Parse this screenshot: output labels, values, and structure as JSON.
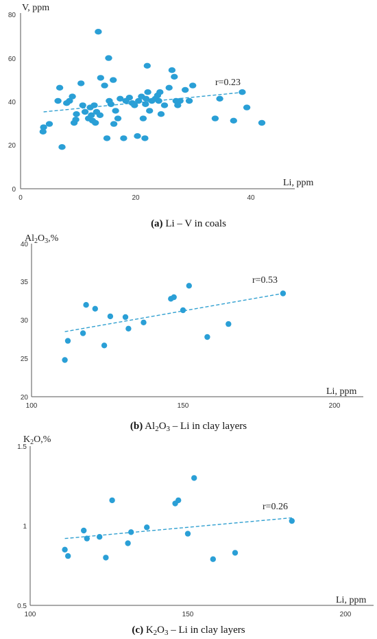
{
  "accent_color": "#2a9fd6",
  "chart_data": [
    {
      "type": "scatter",
      "panel": "a",
      "xlabel": "Li, ppm",
      "ylabel": "V, ppm",
      "xlim": [
        0,
        47
      ],
      "ylim": [
        0,
        80
      ],
      "xticks": [
        0,
        20,
        40
      ],
      "yticks": [
        0,
        20,
        40,
        60,
        80
      ],
      "annotation": "r=0.23",
      "caption": {
        "label": "(a)",
        "text": " Li – V in coals"
      },
      "trend": {
        "x": [
          4,
          39
        ],
        "y": [
          35,
          44
        ]
      },
      "points": {
        "x": [
          3.9,
          4.0,
          5.0,
          7.2,
          6.5,
          6.8,
          8.0,
          8.5,
          9.0,
          9.3,
          9.6,
          9.7,
          10.5,
          10.8,
          11.2,
          11.8,
          12.1,
          12.3,
          12.5,
          12.8,
          13.0,
          13.2,
          13.5,
          13.8,
          13.9,
          14.6,
          15.0,
          15.3,
          15.4,
          15.7,
          16.1,
          16.2,
          16.5,
          16.9,
          17.3,
          17.9,
          18.3,
          18.9,
          19.4,
          19.8,
          20.3,
          20.5,
          21.0,
          21.3,
          21.6,
          21.7,
          21.8,
          22.0,
          22.1,
          22.4,
          22.8,
          23.4,
          23.8,
          24.0,
          24.2,
          24.4,
          25.0,
          25.8,
          26.3,
          26.7,
          27.0,
          27.3,
          27.7,
          28.6,
          29.3,
          29.9,
          33.8,
          34.6,
          37.0,
          38.5,
          39.3,
          41.9
        ],
        "y": [
          26,
          28,
          29.5,
          19,
          40,
          46,
          39,
          40,
          42,
          30,
          31.5,
          34,
          48,
          38,
          35,
          32,
          37,
          33.5,
          31,
          38,
          30,
          35,
          71.5,
          33.5,
          50.5,
          47,
          23,
          59.5,
          40,
          38.5,
          49.5,
          29.5,
          35.5,
          32,
          41,
          23,
          40,
          41.5,
          39,
          38,
          24,
          40,
          42,
          32,
          23,
          38.5,
          41,
          56,
          44,
          35.5,
          40,
          41,
          42.5,
          40,
          44,
          34,
          38,
          46,
          54,
          51,
          40,
          38,
          40,
          45,
          40,
          47,
          32,
          41,
          31,
          44,
          37,
          30
        ]
      }
    },
    {
      "type": "scatter",
      "panel": "b",
      "xlabel": "Li, ppm",
      "ylabel": "Al2O3,%",
      "xlim": [
        100,
        200
      ],
      "ylim": [
        20,
        40
      ],
      "xticks": [
        100,
        150,
        200
      ],
      "yticks": [
        20,
        25,
        30,
        35,
        40
      ],
      "annotation": "r=0.53",
      "caption": {
        "label": "(b)",
        "text": " Al2O3 – Li in clay layers"
      },
      "trend": {
        "x": [
          111,
          183
        ],
        "y": [
          28.5,
          33.5
        ]
      },
      "points": {
        "x": [
          111,
          112,
          117,
          118,
          121,
          124,
          126,
          131,
          132,
          137,
          146,
          147,
          150,
          152,
          158,
          165,
          183
        ],
        "y": [
          24.8,
          27.3,
          28.3,
          32.0,
          31.5,
          26.7,
          30.5,
          30.4,
          28.9,
          29.7,
          32.8,
          33.0,
          31.3,
          34.5,
          27.8,
          29.5,
          33.5
        ]
      }
    },
    {
      "type": "scatter",
      "panel": "c",
      "xlabel": "Li, ppm",
      "ylabel": "K2O,%",
      "xlim": [
        100,
        200
      ],
      "ylim": [
        0.5,
        1.5
      ],
      "xticks": [
        100,
        150,
        200
      ],
      "yticks": [
        0.5,
        1,
        1.5
      ],
      "annotation": "r=0.26",
      "caption": {
        "label": "(c)",
        "text": " K2O3 – Li in clay layers"
      },
      "trend": {
        "x": [
          111,
          183
        ],
        "y": [
          0.92,
          1.05
        ]
      },
      "points": {
        "x": [
          111,
          112,
          117,
          118,
          122,
          124,
          126,
          131,
          132,
          137,
          146,
          147,
          150,
          152,
          158,
          165,
          183
        ],
        "y": [
          0.85,
          0.81,
          0.97,
          0.92,
          0.93,
          0.8,
          1.16,
          0.89,
          0.96,
          0.99,
          1.14,
          1.16,
          0.95,
          1.3,
          0.79,
          0.83,
          1.03
        ]
      }
    }
  ]
}
